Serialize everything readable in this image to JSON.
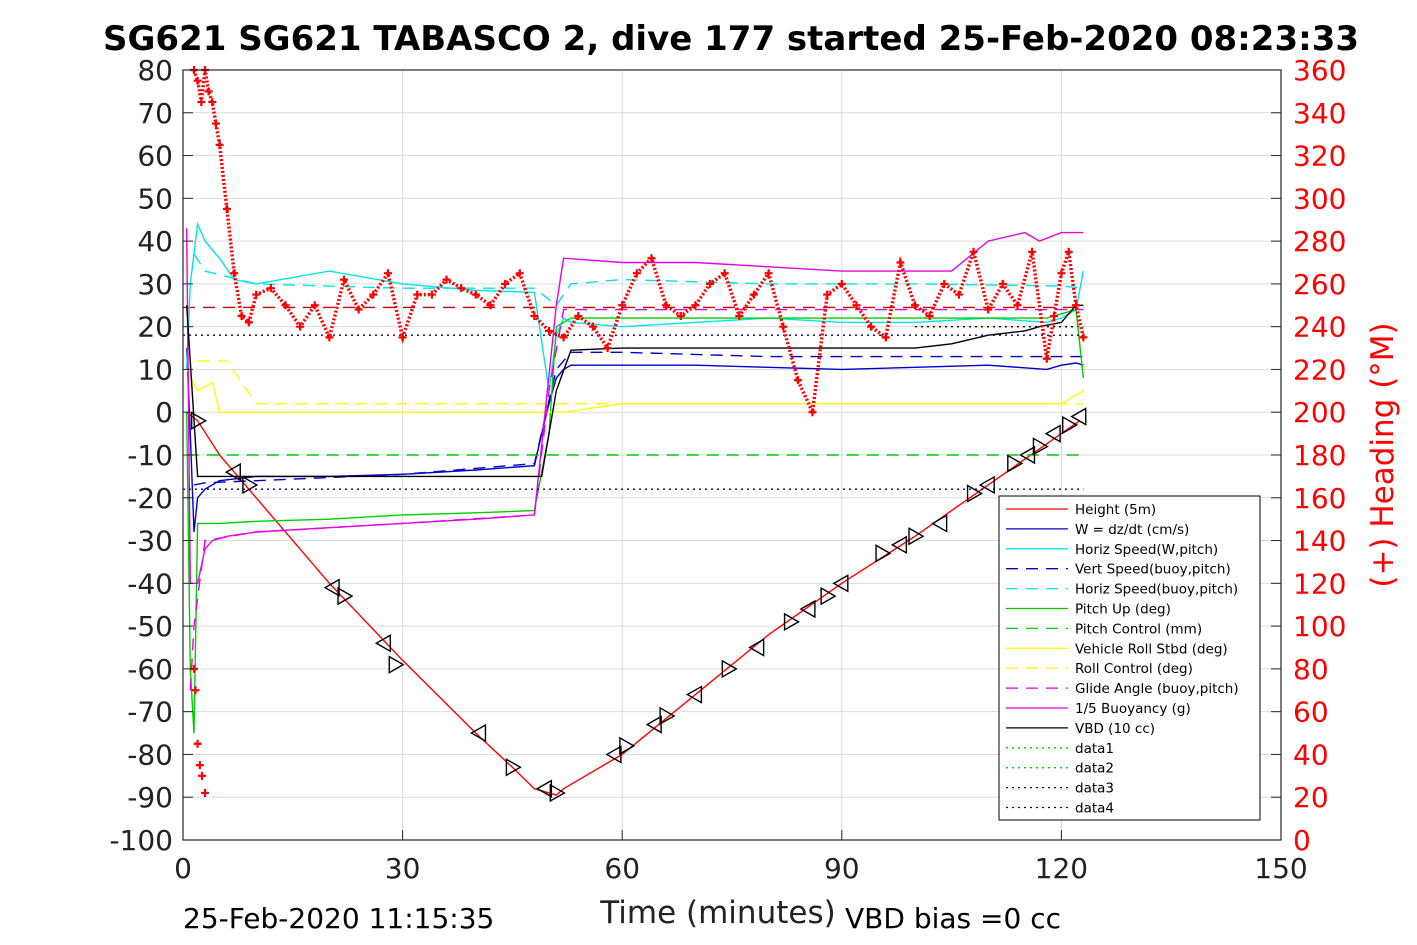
{
  "chart_data": {
    "type": "line",
    "title": "SG621 SG621 TABASCO 2, dive 177 started 25-Feb-2020 08:23:33",
    "xlabel": "Time (minutes)",
    "ylabel_right": "(+) Heading (°M)",
    "xlim": [
      0,
      150
    ],
    "ylim_left": [
      -100,
      80
    ],
    "ylim_right": [
      0,
      360
    ],
    "xticks": [
      "0",
      "30",
      "60",
      "90",
      "120",
      "150"
    ],
    "yticks_left": [
      "80",
      "70",
      "60",
      "50",
      "40",
      "30",
      "20",
      "10",
      "0",
      "-10",
      "-20",
      "-30",
      "-40",
      "-50",
      "-60",
      "-70",
      "-80",
      "-90",
      "-100"
    ],
    "yticks_right": [
      "360",
      "340",
      "320",
      "300",
      "280",
      "260",
      "240",
      "220",
      "200",
      "180",
      "160",
      "140",
      "120",
      "100",
      "80",
      "60",
      "40",
      "20",
      "0"
    ],
    "grid": true,
    "legend_position": "lower-right",
    "footer_left": "25-Feb-2020 11:15:35",
    "footer_right": "VBD bias =0 cc",
    "colors": {
      "height": "#ff0000",
      "w": "#0000cc",
      "horiz_speed": "#00e5e5",
      "vert_speed_buoy": "#0000cc",
      "horiz_speed_buoy": "#00e5e5",
      "pitch": "#00cc00",
      "pitch_control": "#00cc00",
      "roll": "#ffff00",
      "roll_control": "#ffff00",
      "glide_angle": "#e600e6",
      "buoyancy": "#e600e6",
      "vbd": "#000000",
      "heading": "#ff0000"
    },
    "series": [
      {
        "name": "Height (5m)",
        "color": "#ff0000",
        "dash": "",
        "x": [
          0.5,
          2,
          5,
          10,
          20,
          30,
          40,
          45,
          48,
          50,
          51,
          52,
          60,
          70,
          80,
          90,
          100,
          110,
          120,
          122.5
        ],
        "y": [
          0,
          -2,
          -10,
          -20,
          -40,
          -58,
          -75,
          -83,
          -88,
          -89,
          -89.5,
          -88,
          -80,
          -66,
          -52,
          -40,
          -29,
          -17,
          -5,
          -2
        ]
      },
      {
        "name": "W = dz/dt (cm/s)",
        "color": "#0000cc",
        "dash": "",
        "x": [
          0.5,
          1,
          1.5,
          2,
          3,
          5,
          10,
          20,
          30,
          40,
          48,
          49,
          50,
          51,
          52,
          53,
          60,
          70,
          80,
          90,
          100,
          110,
          118,
          120,
          122,
          123
        ],
        "y": [
          15,
          -5,
          -28,
          -20,
          -18,
          -16,
          -15,
          -15,
          -14.5,
          -13.5,
          -12.5,
          -5,
          2,
          8,
          10,
          11,
          11,
          11,
          10.5,
          10,
          10.5,
          11,
          10,
          11,
          11.5,
          11
        ]
      },
      {
        "name": "Horiz Speed(W,pitch)",
        "color": "#00e5e5",
        "dash": "",
        "x": [
          0.5,
          1,
          2,
          3,
          5,
          7,
          10,
          20,
          30,
          40,
          48,
          50,
          51,
          52,
          53,
          60,
          70,
          80,
          90,
          100,
          110,
          118,
          120,
          122,
          123
        ],
        "y": [
          10,
          30,
          44,
          40,
          36,
          31,
          30,
          33,
          30,
          28.5,
          28,
          5,
          18,
          22,
          21,
          20,
          21,
          22,
          21,
          21,
          22,
          21,
          22,
          24,
          33
        ]
      },
      {
        "name": "Vert Speed(buoy,pitch)",
        "color": "#0000cc",
        "dash": "12,8",
        "x": [
          1.5,
          3,
          10,
          30,
          48,
          51,
          53,
          60,
          80,
          100,
          120,
          123
        ],
        "y": [
          -17,
          -16.5,
          -16,
          -14.5,
          -12,
          10,
          14,
          14,
          13,
          13,
          13,
          13
        ]
      },
      {
        "name": "Horiz Speed(buoy,pitch)",
        "color": "#00e5e5",
        "dash": "12,8",
        "x": [
          1.5,
          3,
          10,
          30,
          48,
          51,
          53,
          60,
          80,
          100,
          120,
          123
        ],
        "y": [
          37,
          33,
          30,
          29,
          29,
          25,
          30,
          31,
          30,
          30,
          29.5,
          29
        ]
      },
      {
        "name": "Pitch Up (deg)",
        "color": "#00cc00",
        "dash": "",
        "x": [
          0.5,
          1,
          1.5,
          2,
          5,
          10,
          20,
          30,
          40,
          48,
          50,
          51,
          53,
          60,
          80,
          100,
          118,
          120,
          122,
          123
        ],
        "y": [
          0,
          -60,
          -75,
          -26,
          -26,
          -25.5,
          -25,
          -24,
          -23.5,
          -23,
          -5,
          20,
          22,
          22,
          22,
          22,
          22,
          23,
          24,
          8
        ]
      },
      {
        "name": "Pitch Control (mm)",
        "color": "#00cc00",
        "dash": "12,8",
        "x": [
          0.5,
          1,
          120,
          122,
          123
        ],
        "y": [
          -10,
          -10,
          -10,
          -10,
          -10
        ]
      },
      {
        "name": "Vehicle Roll Stbd (deg)",
        "color": "#ffff00",
        "dash": "",
        "x": [
          0.5,
          2,
          4,
          5,
          10,
          20,
          30,
          40,
          48,
          50,
          52,
          60,
          70,
          80,
          90,
          100,
          110,
          120,
          123
        ],
        "y": [
          10,
          5,
          7,
          0,
          0,
          0,
          0,
          0,
          0,
          0,
          0,
          2,
          2,
          2,
          2,
          2,
          2,
          2,
          5
        ]
      },
      {
        "name": "Roll Control (deg)",
        "color": "#ffff00",
        "dash": "12,8",
        "x": [
          2,
          6,
          10,
          120,
          123
        ],
        "y": [
          12,
          12,
          2,
          2,
          2
        ]
      },
      {
        "name": "Glide Angle (buoy,pitch)",
        "color": "#e600e6",
        "dash": "12,8",
        "x": [
          1,
          1.5,
          3,
          10,
          30,
          48,
          50,
          52,
          60,
          80,
          100,
          120,
          123
        ],
        "y": [
          -65,
          -50,
          -30,
          -28,
          -26,
          -24,
          5,
          24,
          24,
          24,
          24,
          24,
          24
        ]
      },
      {
        "name": "1/5 Buoyancy (g)",
        "color": "#e600e6",
        "dash": "",
        "x": [
          0.5,
          1,
          2,
          3,
          4,
          6,
          10,
          20,
          30,
          40,
          48,
          51,
          52,
          60,
          70,
          80,
          90,
          100,
          105,
          110,
          115,
          117,
          120,
          122,
          123
        ],
        "y": [
          43,
          -40,
          -40,
          -32,
          -30,
          -29,
          -28,
          -27,
          -26,
          -25,
          -24,
          25,
          36,
          35,
          35,
          34,
          33,
          33,
          33,
          40,
          42,
          40,
          42,
          42,
          42
        ]
      },
      {
        "name": "VBD (10 cc)",
        "color": "#000000",
        "dash": "",
        "x": [
          0.5,
          2,
          49,
          51,
          53,
          60,
          80,
          100,
          105,
          110,
          115,
          117,
          120,
          122,
          123
        ],
        "y": [
          25,
          -15,
          -15,
          5,
          14.5,
          15,
          15,
          15,
          16,
          18,
          19,
          20,
          21,
          25,
          25
        ]
      },
      {
        "name": "data1",
        "color": "#00cc00",
        "dash": "2,4",
        "x": [],
        "y": []
      },
      {
        "name": "data2",
        "color": "#00cc00",
        "dash": "2,4",
        "x": [],
        "y": []
      },
      {
        "name": "data3",
        "color": "#000080",
        "dash": "2,4",
        "x": [
          0,
          123
        ],
        "y": [
          18,
          18
        ]
      },
      {
        "name": "data4",
        "color": "#000080",
        "dash": "2,4",
        "x": [
          0,
          123
        ],
        "y": [
          -18,
          -18
        ]
      }
    ],
    "extra_lines": [
      {
        "color": "#cc0000",
        "dash": "12,8",
        "x": [
          0,
          123
        ],
        "y": [
          24.5,
          24.5
        ]
      },
      {
        "color": "#000000",
        "dash": "2,4",
        "x": [
          100,
          123
        ],
        "y": [
          20,
          20
        ]
      }
    ],
    "heading": {
      "name": "Heading",
      "axis": "right",
      "x": [
        1.5,
        2,
        2.5,
        3,
        3.5,
        4,
        4.5,
        5,
        6,
        7,
        8,
        9,
        10,
        12,
        14,
        16,
        18,
        20,
        22,
        24,
        26,
        28,
        30,
        32,
        34,
        36,
        38,
        40,
        42,
        44,
        46,
        48,
        50,
        52,
        54,
        56,
        58,
        60,
        62,
        64,
        66,
        68,
        70,
        72,
        74,
        76,
        78,
        80,
        82,
        84,
        86,
        88,
        90,
        92,
        94,
        96,
        98,
        100,
        102,
        104,
        106,
        108,
        110,
        112,
        114,
        116,
        118,
        119,
        120,
        121,
        122,
        123
      ],
      "y": [
        360,
        355,
        345,
        360,
        350,
        345,
        335,
        325,
        295,
        265,
        245,
        242,
        255,
        258,
        250,
        240,
        250,
        235,
        262,
        248,
        255,
        265,
        235,
        255,
        255,
        262,
        258,
        255,
        250,
        260,
        265,
        245,
        238,
        235,
        245,
        240,
        230,
        250,
        265,
        272,
        250,
        245,
        250,
        260,
        265,
        245,
        255,
        265,
        240,
        215,
        200,
        255,
        260,
        250,
        240,
        235,
        270,
        250,
        245,
        260,
        255,
        275,
        248,
        260,
        250,
        275,
        225,
        245,
        265,
        275,
        250,
        235
      ],
      "scatter_x": [
        1.5,
        1.7,
        2,
        2.3,
        2.6,
        3
      ],
      "scatter_y": [
        80,
        70,
        45,
        35,
        30,
        22
      ]
    },
    "triangle_markers": {
      "x": [
        2,
        7,
        9,
        20.5,
        22,
        27.5,
        29,
        40.5,
        45,
        49.5,
        51,
        59,
        60.5,
        64.5,
        66,
        70,
        74.5,
        78.5,
        83,
        85.5,
        88,
        90,
        95.5,
        98,
        100,
        103.5,
        108,
        110,
        113.5,
        115.5,
        117,
        119,
        121,
        122.5
      ],
      "y": [
        -2,
        -14,
        -17,
        -41,
        -43,
        -54,
        -59,
        -75,
        -83,
        -88,
        -89,
        -80,
        -78,
        -73,
        -71,
        -66,
        -60,
        -55,
        -49,
        -46,
        -43,
        -40,
        -33,
        -31,
        -29,
        -26,
        -19,
        -17,
        -12,
        -10,
        -8,
        -5,
        -3,
        -1
      ]
    }
  },
  "legend": {
    "items": [
      {
        "label": "Height (5m)",
        "color": "#ff0000",
        "dash": ""
      },
      {
        "label": "W = dz/dt (cm/s)",
        "color": "#0000cc",
        "dash": ""
      },
      {
        "label": "Horiz Speed(W,pitch)",
        "color": "#00e5e5",
        "dash": ""
      },
      {
        "label": "Vert Speed(buoy,pitch)",
        "color": "#0000cc",
        "dash": "12,8"
      },
      {
        "label": "Horiz Speed(buoy,pitch)",
        "color": "#00e5e5",
        "dash": "12,8"
      },
      {
        "label": "Pitch Up (deg)",
        "color": "#00cc00",
        "dash": ""
      },
      {
        "label": "Pitch Control (mm)",
        "color": "#00cc00",
        "dash": "12,8"
      },
      {
        "label": "Vehicle Roll Stbd (deg)",
        "color": "#ffff00",
        "dash": ""
      },
      {
        "label": "Roll Control (deg)",
        "color": "#ffff00",
        "dash": "12,8"
      },
      {
        "label": "Glide Angle (buoy,pitch)",
        "color": "#e600e6",
        "dash": "12,8"
      },
      {
        "label": "1/5 Buoyancy (g)",
        "color": "#e600e6",
        "dash": ""
      },
      {
        "label": "VBD (10 cc)",
        "color": "#000000",
        "dash": ""
      },
      {
        "label": "data1",
        "color": "#00cc00",
        "dash": "2,4"
      },
      {
        "label": "data2",
        "color": "#00cc00",
        "dash": "2,4"
      },
      {
        "label": "data3",
        "color": "#000080",
        "dash": "2,4"
      },
      {
        "label": "data4",
        "color": "#000080",
        "dash": "2,4"
      }
    ]
  }
}
